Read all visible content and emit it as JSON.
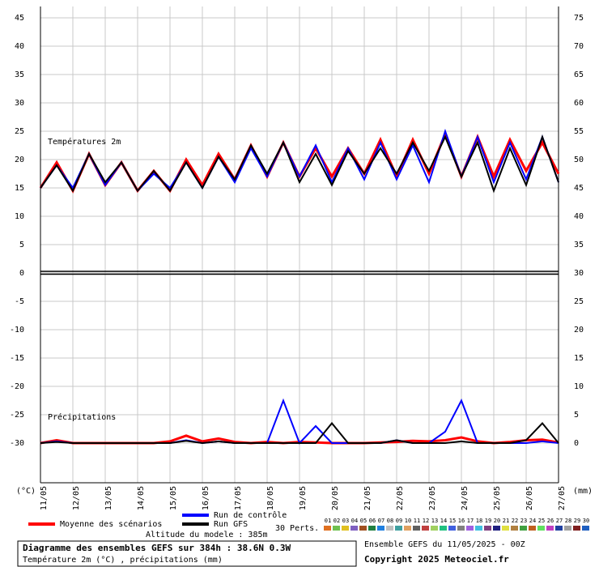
{
  "chart_data": {
    "type": "line",
    "title": "Diagramme des ensembles GEFS sur 384h : 38.6N 0.3W",
    "subtitle": "Température 2m (°C) , précipitations (mm)",
    "temp_label": "Températures 2m",
    "precip_label": "Précipitations",
    "y_unit": "(°C)",
    "y2_unit": "(mm)",
    "altitude": "Altitude du modele : 385m",
    "run_info": "Ensemble GEFS du 11/05/2025 - 00Z",
    "copyright": "Copyright 2025 Meteociel.fr",
    "members_title": "30 Perts.",
    "members": [
      {
        "label": "01",
        "color": "#e07020"
      },
      {
        "label": "02",
        "color": "#70c050"
      },
      {
        "label": "03",
        "color": "#e0c020"
      },
      {
        "label": "04",
        "color": "#8060c0"
      },
      {
        "label": "05",
        "color": "#a05020"
      },
      {
        "label": "06",
        "color": "#208040"
      },
      {
        "label": "07",
        "color": "#2080e0"
      },
      {
        "label": "08",
        "color": "#c0c0c0"
      },
      {
        "label": "09",
        "color": "#40a0a0"
      },
      {
        "label": "10",
        "color": "#e0a060"
      },
      {
        "label": "11",
        "color": "#606060"
      },
      {
        "label": "12",
        "color": "#c04040"
      },
      {
        "label": "13",
        "color": "#a0d060"
      },
      {
        "label": "14",
        "color": "#20c080"
      },
      {
        "label": "15",
        "color": "#4060e0"
      },
      {
        "label": "16",
        "color": "#808080"
      },
      {
        "label": "17",
        "color": "#a060e0"
      },
      {
        "label": "18",
        "color": "#40c0e0"
      },
      {
        "label": "19",
        "color": "#804080"
      },
      {
        "label": "20",
        "color": "#202080"
      },
      {
        "label": "21",
        "color": "#e0e040"
      },
      {
        "label": "22",
        "color": "#b08040"
      },
      {
        "label": "23",
        "color": "#40a040"
      },
      {
        "label": "24",
        "color": "#c06020"
      },
      {
        "label": "25",
        "color": "#60e060"
      },
      {
        "label": "26",
        "color": "#c040c0"
      },
      {
        "label": "27",
        "color": "#2040a0"
      },
      {
        "label": "28",
        "color": "#a0a0a0"
      },
      {
        "label": "29",
        "color": "#802020"
      },
      {
        "label": "30",
        "color": "#2060c0"
      }
    ],
    "x": [
      0,
      0.5,
      1,
      1.5,
      2,
      2.5,
      3,
      3.5,
      4,
      4.5,
      5,
      5.5,
      6,
      6.5,
      7,
      7.5,
      8,
      8.5,
      9,
      9.5,
      10,
      10.5,
      11,
      11.5,
      12,
      12.5,
      13,
      13.5,
      14,
      14.5,
      15,
      15.5,
      16
    ],
    "xlim": [
      0,
      16
    ],
    "xticks": [
      {
        "value": 0,
        "label": "11/05"
      },
      {
        "value": 1,
        "label": "12/05"
      },
      {
        "value": 2,
        "label": "13/05"
      },
      {
        "value": 3,
        "label": "14/05"
      },
      {
        "value": 4,
        "label": "15/05"
      },
      {
        "value": 5,
        "label": "16/05"
      },
      {
        "value": 6,
        "label": "17/05"
      },
      {
        "value": 7,
        "label": "18/05"
      },
      {
        "value": 8,
        "label": "19/05"
      },
      {
        "value": 9,
        "label": "20/05"
      },
      {
        "value": 10,
        "label": "21/05"
      },
      {
        "value": 11,
        "label": "22/05"
      },
      {
        "value": 12,
        "label": "23/05"
      },
      {
        "value": 13,
        "label": "24/05"
      },
      {
        "value": 14,
        "label": "25/05"
      },
      {
        "value": 15,
        "label": "26/05"
      },
      {
        "value": 16,
        "label": "27/05"
      }
    ],
    "ylim": [
      -37,
      47
    ],
    "yticks": [
      -30,
      -25,
      -20,
      -15,
      -10,
      -5,
      0,
      5,
      10,
      15,
      20,
      25,
      30,
      35,
      40,
      45
    ],
    "y2lim": [
      -7,
      77
    ],
    "y2ticks": [
      0,
      5,
      10,
      15,
      20,
      25,
      30,
      35,
      40,
      45,
      50,
      55,
      60,
      65,
      70,
      75
    ],
    "grid": true,
    "series": [
      {
        "name": "Moyenne des scénarios",
        "color": "#ff0000",
        "width": 3,
        "values": [
          15,
          19.5,
          14.5,
          21,
          15.5,
          19.5,
          14.5,
          18,
          14.5,
          20,
          15.5,
          21,
          16.5,
          22.5,
          17,
          23,
          17,
          22,
          17,
          22,
          17.5,
          23.5,
          17,
          23.5,
          17.5,
          24.5,
          17,
          24,
          17,
          23.5,
          18,
          23,
          17.5
        ]
      },
      {
        "name": "Run de contrôle",
        "color": "#0000ff",
        "width": 2,
        "values": [
          15,
          19,
          15,
          21,
          15.5,
          19.5,
          14.5,
          17.5,
          15,
          19.5,
          15,
          20.5,
          16,
          22,
          17,
          23,
          17,
          22.5,
          16,
          22,
          16.5,
          23,
          16.5,
          22.5,
          16,
          25,
          17,
          24,
          16,
          23,
          16.5,
          24,
          16
        ]
      },
      {
        "name": "Run GFS",
        "color": "#000000",
        "width": 2,
        "values": [
          15,
          19,
          14.5,
          21,
          16,
          19.5,
          14.5,
          18,
          14.5,
          19.5,
          15,
          20.5,
          16.5,
          22.5,
          17.5,
          23,
          16,
          21,
          15.5,
          21.5,
          17.5,
          22,
          17.5,
          23,
          18,
          24,
          17,
          23,
          14.5,
          22,
          15.5,
          24,
          16
        ]
      }
    ],
    "precip_series": [
      {
        "color": "#ff0000",
        "width": 3,
        "axis": "y2",
        "values": [
          0,
          0.5,
          0,
          0,
          0,
          0,
          0,
          0,
          0.3,
          1.3,
          0.3,
          0.8,
          0.2,
          0,
          0.2,
          0,
          0.2,
          0.1,
          0,
          0,
          0,
          0.1,
          0.2,
          0.4,
          0.3,
          0.5,
          1,
          0.3,
          0,
          0.2,
          0.5,
          0.6,
          0.1
        ]
      },
      {
        "color": "#0000ff",
        "width": 2,
        "axis": "y2",
        "values": [
          0,
          0.3,
          0,
          0,
          0,
          0,
          0,
          0,
          0,
          0.5,
          0,
          0.3,
          0,
          0,
          0,
          7.5,
          0,
          3,
          0,
          0,
          0,
          0,
          0.5,
          0,
          0,
          2,
          7.5,
          0,
          0,
          0,
          0,
          0.3,
          0
        ]
      },
      {
        "color": "#000000",
        "width": 2,
        "axis": "y2",
        "values": [
          0,
          0.2,
          0,
          0,
          0,
          0,
          0,
          0,
          0,
          0.4,
          0,
          0.3,
          0,
          0,
          0,
          0,
          0,
          0,
          3.5,
          0,
          0,
          0,
          0.5,
          0,
          0,
          0,
          0.3,
          0,
          0,
          0,
          0.5,
          3.5,
          0
        ]
      }
    ]
  }
}
